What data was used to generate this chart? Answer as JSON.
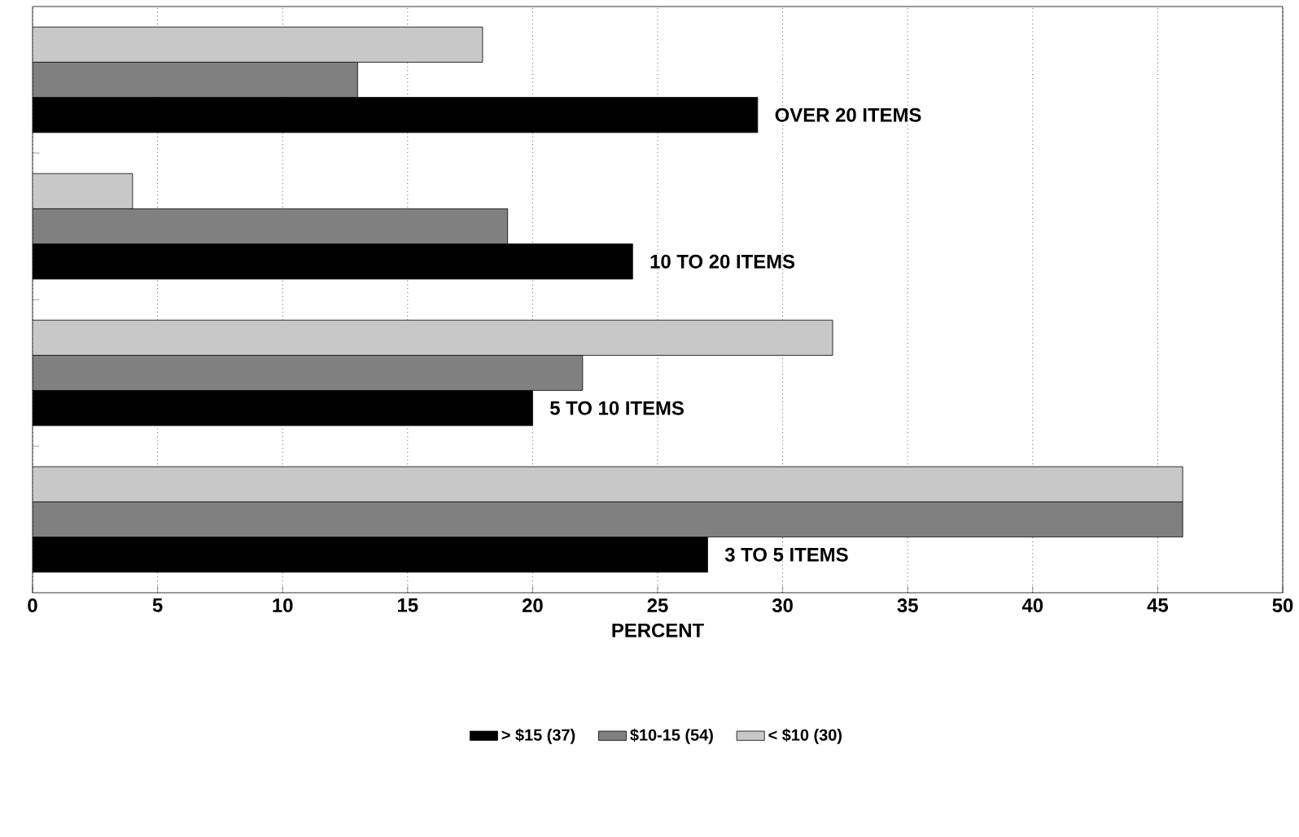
{
  "chart_data": {
    "type": "bar",
    "orientation": "horizontal",
    "categories": [
      "OVER 20 ITEMS",
      "10 TO 20 ITEMS",
      "5 TO 10 ITEMS",
      "3 TO 5 ITEMS"
    ],
    "series": [
      {
        "name": "> $15 (37)",
        "color": "#000000",
        "values": [
          29,
          24,
          20,
          27
        ]
      },
      {
        "name": "$10-15 (54)",
        "color": "#808080",
        "values": [
          13,
          19,
          22,
          46
        ]
      },
      {
        "name": "< $10 (30)",
        "color": "#c8c8c8",
        "values": [
          18,
          4,
          32,
          46
        ]
      }
    ],
    "xlim": [
      0,
      50
    ],
    "xticks": [
      0,
      5,
      10,
      15,
      20,
      25,
      30,
      35,
      40,
      45,
      50
    ],
    "xlabel": "PERCENT",
    "grid": "x",
    "legend": "bottom",
    "tick_labels": "x"
  }
}
